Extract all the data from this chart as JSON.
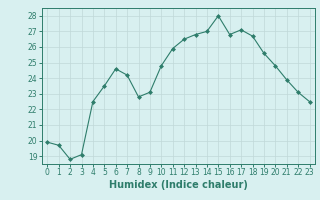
{
  "x": [
    0,
    1,
    2,
    3,
    4,
    5,
    6,
    7,
    8,
    9,
    10,
    11,
    12,
    13,
    14,
    15,
    16,
    17,
    18,
    19,
    20,
    21,
    22,
    23
  ],
  "y": [
    19.9,
    19.7,
    18.8,
    19.1,
    22.5,
    23.5,
    24.6,
    24.2,
    22.8,
    23.1,
    24.8,
    25.9,
    26.5,
    26.8,
    27.0,
    28.0,
    26.8,
    27.1,
    26.7,
    25.6,
    24.8,
    23.9,
    23.1,
    22.5
  ],
  "line_color": "#2E7D6B",
  "marker": "D",
  "marker_size": 2.0,
  "bg_color": "#D8F0F0",
  "grid_color": "#C0D8D8",
  "xlabel": "Humidex (Indice chaleur)",
  "ylim": [
    18.5,
    28.5
  ],
  "xlim": [
    -0.5,
    23.5
  ],
  "yticks": [
    19,
    20,
    21,
    22,
    23,
    24,
    25,
    26,
    27,
    28
  ],
  "xticks": [
    0,
    1,
    2,
    3,
    4,
    5,
    6,
    7,
    8,
    9,
    10,
    11,
    12,
    13,
    14,
    15,
    16,
    17,
    18,
    19,
    20,
    21,
    22,
    23
  ],
  "tick_fontsize": 5.5,
  "xlabel_fontsize": 7.0,
  "linewidth": 0.8
}
